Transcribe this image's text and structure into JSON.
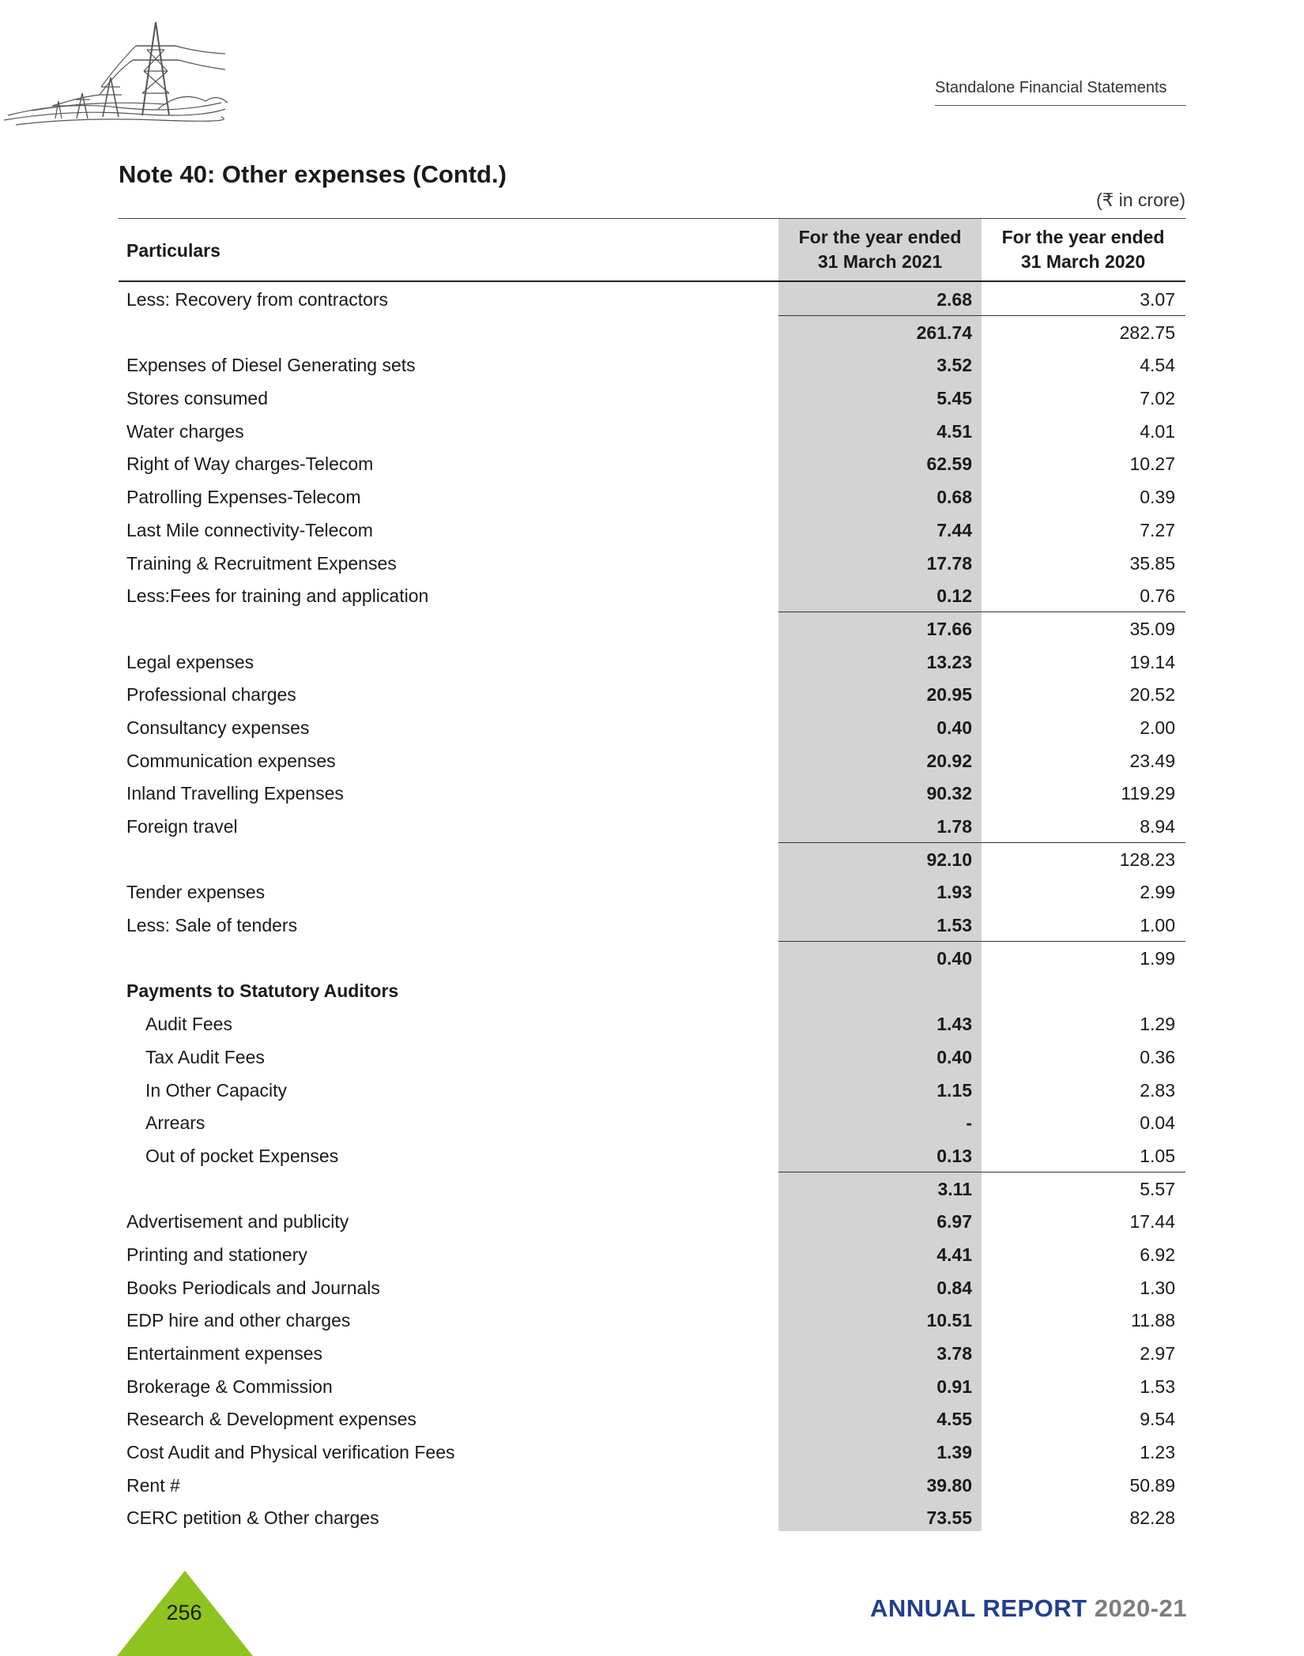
{
  "header": {
    "section": "Standalone Financial Statements",
    "note_title": "Note 40: Other expenses (Contd.)",
    "unit": "(₹ in crore)"
  },
  "table": {
    "headers": {
      "particulars": "Particulars",
      "col1_line1": "For the year ended",
      "col1_line2": "31 March 2021",
      "col2_line1": "For the year ended",
      "col2_line2": "31 March 2020"
    },
    "rows": [
      {
        "label": "Less: Recovery from contractors",
        "v2021": "2.68",
        "v2020": "3.07"
      },
      {
        "label": "",
        "v2021": "261.74",
        "v2020": "282.75"
      },
      {
        "label": "Expenses of Diesel Generating sets",
        "v2021": "3.52",
        "v2020": "4.54"
      },
      {
        "label": "Stores consumed",
        "v2021": "5.45",
        "v2020": "7.02"
      },
      {
        "label": "Water charges",
        "v2021": "4.51",
        "v2020": "4.01"
      },
      {
        "label": "Right of Way charges-Telecom",
        "v2021": "62.59",
        "v2020": "10.27"
      },
      {
        "label": "Patrolling Expenses-Telecom",
        "v2021": "0.68",
        "v2020": "0.39"
      },
      {
        "label": "Last Mile connectivity-Telecom",
        "v2021": "7.44",
        "v2020": "7.27"
      },
      {
        "label": "Training & Recruitment Expenses",
        "v2021": "17.78",
        "v2020": "35.85"
      },
      {
        "label": "Less:Fees for training and application",
        "v2021": "0.12",
        "v2020": "0.76"
      },
      {
        "label": "",
        "v2021": "17.66",
        "v2020": "35.09"
      },
      {
        "label": "Legal expenses",
        "v2021": "13.23",
        "v2020": "19.14"
      },
      {
        "label": "Professional charges",
        "v2021": "20.95",
        "v2020": "20.52"
      },
      {
        "label": "Consultancy expenses",
        "v2021": "0.40",
        "v2020": "2.00"
      },
      {
        "label": "Communication expenses",
        "v2021": "20.92",
        "v2020": "23.49"
      },
      {
        "label": "Inland Travelling Expenses",
        "v2021": "90.32",
        "v2020": "119.29"
      },
      {
        "label": "Foreign travel",
        "v2021": "1.78",
        "v2020": "8.94"
      },
      {
        "label": "",
        "v2021": "92.10",
        "v2020": "128.23"
      },
      {
        "label": "Tender expenses",
        "v2021": "1.93",
        "v2020": "2.99"
      },
      {
        "label": "Less: Sale of tenders",
        "v2021": "1.53",
        "v2020": "1.00"
      },
      {
        "label": "",
        "v2021": "0.40",
        "v2020": "1.99"
      },
      {
        "label": "Payments to Statutory Auditors",
        "v2021": "",
        "v2020": ""
      },
      {
        "label": "Audit Fees",
        "v2021": "1.43",
        "v2020": "1.29"
      },
      {
        "label": "Tax Audit Fees",
        "v2021": "0.40",
        "v2020": "0.36"
      },
      {
        "label": "In Other Capacity",
        "v2021": "1.15",
        "v2020": "2.83"
      },
      {
        "label": "Arrears",
        "v2021": "-",
        "v2020": "0.04"
      },
      {
        "label": "Out of pocket Expenses",
        "v2021": "0.13",
        "v2020": "1.05"
      },
      {
        "label": "",
        "v2021": "3.11",
        "v2020": "5.57"
      },
      {
        "label": "Advertisement and publicity",
        "v2021": "6.97",
        "v2020": "17.44"
      },
      {
        "label": "Printing and stationery",
        "v2021": "4.41",
        "v2020": "6.92"
      },
      {
        "label": "Books Periodicals and Journals",
        "v2021": "0.84",
        "v2020": "1.30"
      },
      {
        "label": "EDP hire and other charges",
        "v2021": "10.51",
        "v2020": "11.88"
      },
      {
        "label": "Entertainment expenses",
        "v2021": "3.78",
        "v2020": "2.97"
      },
      {
        "label": "Brokerage & Commission",
        "v2021": "0.91",
        "v2020": "1.53"
      },
      {
        "label": "Research & Development expenses",
        "v2021": "4.55",
        "v2020": "9.54"
      },
      {
        "label": "Cost Audit and Physical verification Fees",
        "v2021": "1.39",
        "v2020": "1.23"
      },
      {
        "label": "Rent #",
        "v2021": "39.80",
        "v2020": "50.89"
      },
      {
        "label": "CERC petition & Other charges",
        "v2021": "73.55",
        "v2020": "82.28"
      }
    ]
  },
  "footer": {
    "page_number": "256",
    "report_label": "ANNUAL REPORT",
    "report_year": "2020-21"
  },
  "colors": {
    "shade": "#d3d3d3",
    "page_marker": "#8fc31f",
    "report_blue": "#223f8f",
    "report_gray": "#7d7d7d"
  }
}
